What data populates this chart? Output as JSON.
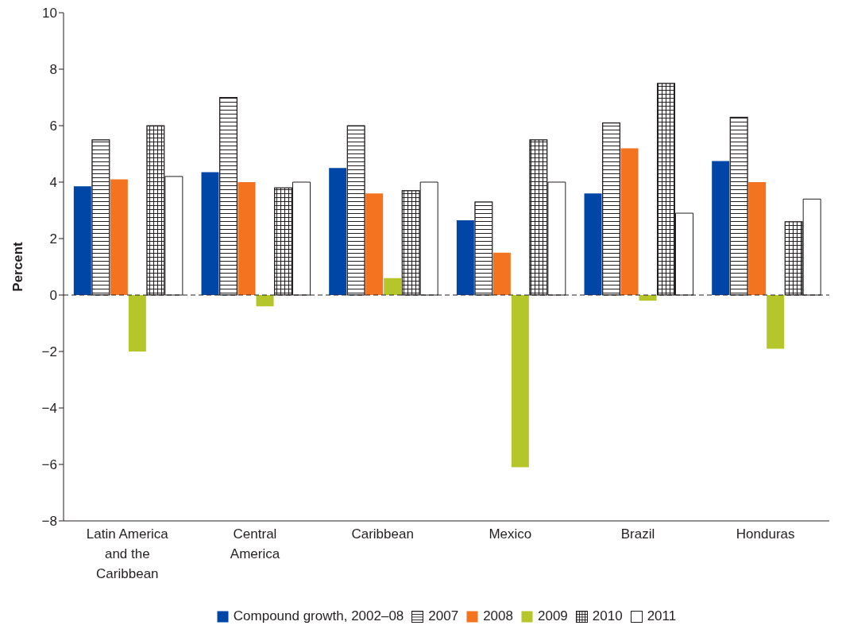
{
  "chart_data": {
    "type": "bar",
    "ylabel": "Percent",
    "categories": [
      "Latin America and the Caribbean",
      "Central America",
      "Caribbean",
      "Mexico",
      "Brazil",
      "Honduras"
    ],
    "series": [
      {
        "name": "Compound growth, 2002–08",
        "color": "#0046a6",
        "values": [
          3.85,
          4.35,
          4.5,
          2.65,
          3.6,
          4.75
        ]
      },
      {
        "name": "2007",
        "color": "#231f20",
        "values": [
          5.5,
          7.0,
          6.0,
          3.3,
          6.1,
          6.3
        ]
      },
      {
        "name": "2008",
        "color": "#f47321",
        "values": [
          4.1,
          4.0,
          3.6,
          1.5,
          5.2,
          4.0
        ]
      },
      {
        "name": "2009",
        "color": "#b5c62a",
        "values": [
          -2.0,
          -0.4,
          0.6,
          -6.1,
          -0.2,
          -1.9
        ]
      },
      {
        "name": "2010",
        "color": "#231f20",
        "values": [
          6.0,
          3.8,
          3.7,
          5.5,
          7.5,
          2.6
        ]
      },
      {
        "name": "2011",
        "color": "#ffffff",
        "values": [
          4.2,
          4.0,
          4.0,
          4.0,
          2.9,
          3.4
        ]
      }
    ],
    "ylim": [
      -8,
      10
    ],
    "yticks": [
      {
        "value": -8,
        "label": "−8"
      },
      {
        "value": -6,
        "label": "−6"
      },
      {
        "value": -4,
        "label": "−4"
      },
      {
        "value": -2,
        "label": "−2"
      },
      0,
      2,
      4,
      6,
      8,
      10
    ],
    "ref_lines": [
      {
        "axis": "y",
        "value": 0,
        "line_style": "dashed",
        "color": "#231f20"
      }
    ],
    "grid": false,
    "legend": "bottom"
  }
}
